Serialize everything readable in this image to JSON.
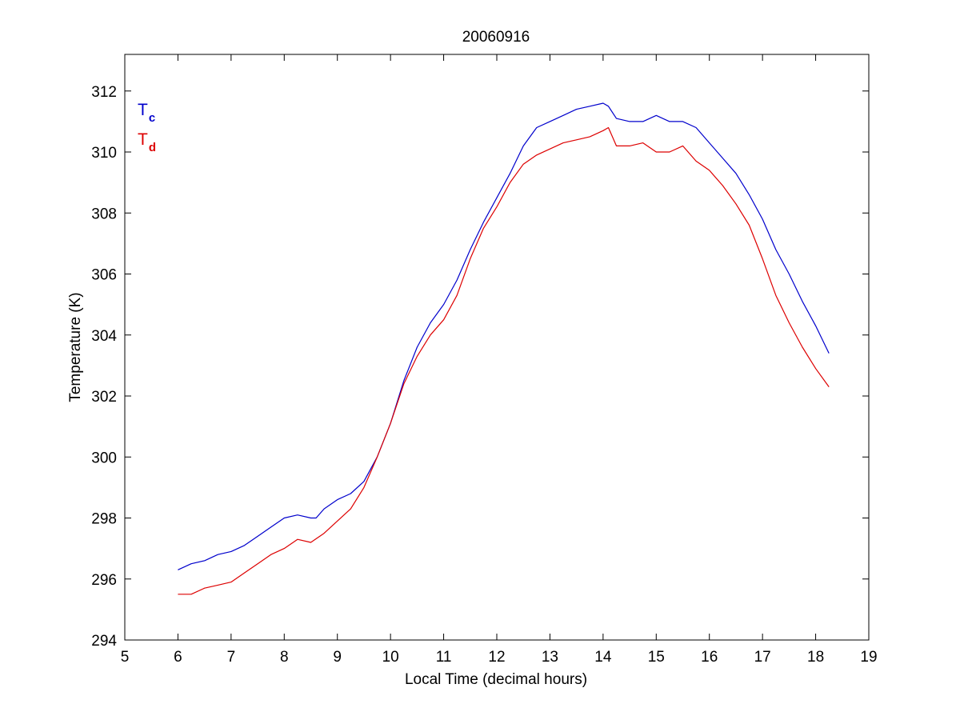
{
  "chart_data": {
    "type": "line",
    "title": "20060916",
    "xlabel": "Local Time (decimal hours)",
    "ylabel": "Temperature (K)",
    "xlim": [
      5,
      19
    ],
    "ylim": [
      294,
      313.2
    ],
    "xticks": [
      5,
      6,
      7,
      8,
      9,
      10,
      11,
      12,
      13,
      14,
      15,
      16,
      17,
      18,
      19
    ],
    "yticks": [
      294,
      296,
      298,
      300,
      302,
      304,
      306,
      308,
      310,
      312
    ],
    "grid": false,
    "legend_position": "top-left",
    "series": [
      {
        "name": "T",
        "subscript": "c",
        "color": "#0000cc",
        "x": [
          6.0,
          6.25,
          6.5,
          6.75,
          7.0,
          7.25,
          7.5,
          7.75,
          8.0,
          8.25,
          8.5,
          8.6,
          8.75,
          9.0,
          9.25,
          9.5,
          9.75,
          10.0,
          10.25,
          10.5,
          10.75,
          11.0,
          11.25,
          11.5,
          11.75,
          12.0,
          12.25,
          12.5,
          12.75,
          13.0,
          13.25,
          13.5,
          13.75,
          14.0,
          14.1,
          14.25,
          14.5,
          14.75,
          15.0,
          15.25,
          15.5,
          15.75,
          16.0,
          16.25,
          16.5,
          16.75,
          17.0,
          17.25,
          17.5,
          17.75,
          18.0,
          18.25
        ],
        "y": [
          296.3,
          296.5,
          296.6,
          296.8,
          296.9,
          297.1,
          297.4,
          297.7,
          298.0,
          298.1,
          298.0,
          298.0,
          298.3,
          298.6,
          298.8,
          299.2,
          300.0,
          301.1,
          302.5,
          303.6,
          304.4,
          305.0,
          305.8,
          306.8,
          307.7,
          308.5,
          309.3,
          310.2,
          310.8,
          311.0,
          311.2,
          311.4,
          311.5,
          311.6,
          311.5,
          311.1,
          311.0,
          311.0,
          311.2,
          311.0,
          311.0,
          310.8,
          310.3,
          309.8,
          309.3,
          308.6,
          307.8,
          306.8,
          306.0,
          305.1,
          304.3,
          303.4
        ]
      },
      {
        "name": "T",
        "subscript": "d",
        "color": "#dd0000",
        "x": [
          6.0,
          6.25,
          6.5,
          6.75,
          7.0,
          7.25,
          7.5,
          7.75,
          8.0,
          8.25,
          8.5,
          8.75,
          9.0,
          9.25,
          9.5,
          9.75,
          10.0,
          10.25,
          10.5,
          10.75,
          11.0,
          11.25,
          11.5,
          11.75,
          12.0,
          12.25,
          12.5,
          12.75,
          13.0,
          13.25,
          13.5,
          13.75,
          14.0,
          14.1,
          14.25,
          14.5,
          14.75,
          15.0,
          15.25,
          15.5,
          15.75,
          16.0,
          16.25,
          16.5,
          16.75,
          17.0,
          17.25,
          17.5,
          17.75,
          18.0,
          18.25
        ],
        "y": [
          295.5,
          295.5,
          295.7,
          295.8,
          295.9,
          296.2,
          296.5,
          296.8,
          297.0,
          297.3,
          297.2,
          297.5,
          297.9,
          298.3,
          299.0,
          300.0,
          301.1,
          302.4,
          303.3,
          304.0,
          304.5,
          305.3,
          306.5,
          307.5,
          308.2,
          309.0,
          309.6,
          309.9,
          310.1,
          310.3,
          310.4,
          310.5,
          310.7,
          310.8,
          310.2,
          310.2,
          310.3,
          310.0,
          310.0,
          310.2,
          309.7,
          309.4,
          308.9,
          308.3,
          307.6,
          306.5,
          305.3,
          304.4,
          303.6,
          302.9,
          302.3
        ]
      }
    ]
  }
}
